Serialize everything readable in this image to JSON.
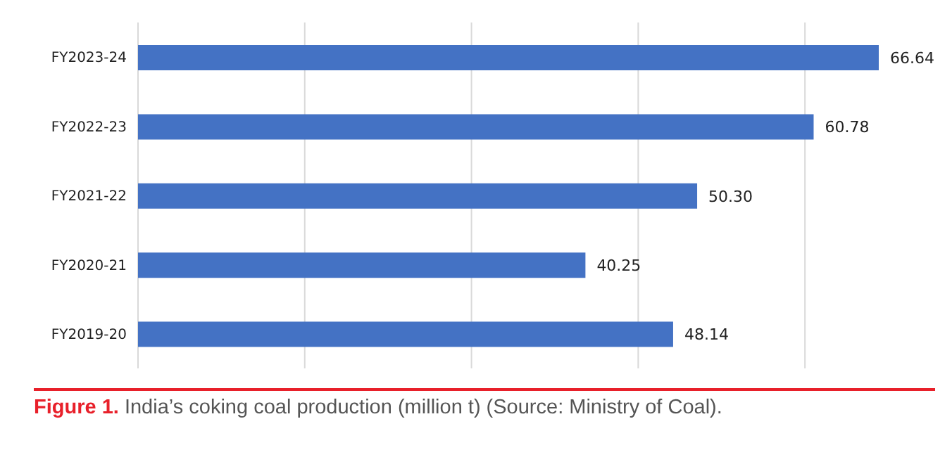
{
  "chart_data": {
    "type": "bar",
    "orientation": "horizontal",
    "categories": [
      "FY2023-24",
      "FY2022-23",
      "FY2021-22",
      "FY2020-21",
      "FY2019-20"
    ],
    "values": [
      66.64,
      60.78,
      50.3,
      40.25,
      48.14
    ],
    "value_labels": [
      "66.64",
      "60.78",
      "50.30",
      "40.25",
      "48.14"
    ],
    "color": "#4472c4",
    "xticks": [
      {
        "value": 0,
        "label": null
      },
      {
        "value": 15,
        "label": null
      },
      {
        "value": 30,
        "label": null
      },
      {
        "value": 45,
        "label": null
      },
      {
        "value": 60,
        "label": null
      }
    ],
    "tick_labels": "y",
    "grid": "x",
    "annotations": [
      "Figure 1.",
      "India’s coking coal production (million t) (Source: Ministry of Coal)."
    ]
  }
}
